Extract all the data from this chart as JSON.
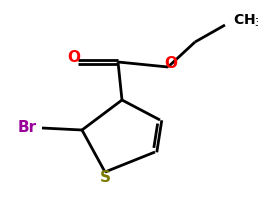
{
  "bg_color": "#ffffff",
  "atom_colors": {
    "O": "#ff0000",
    "S": "#7a7a00",
    "Br": "#990099",
    "C": "#000000"
  },
  "bond_color": "#000000",
  "bond_lw": 2.0,
  "dbo": 0.018,
  "figsize": [
    2.58,
    1.98
  ],
  "dpi": 100,
  "xlim": [
    0.0,
    2.58
  ],
  "ylim": [
    0.0,
    1.98
  ]
}
